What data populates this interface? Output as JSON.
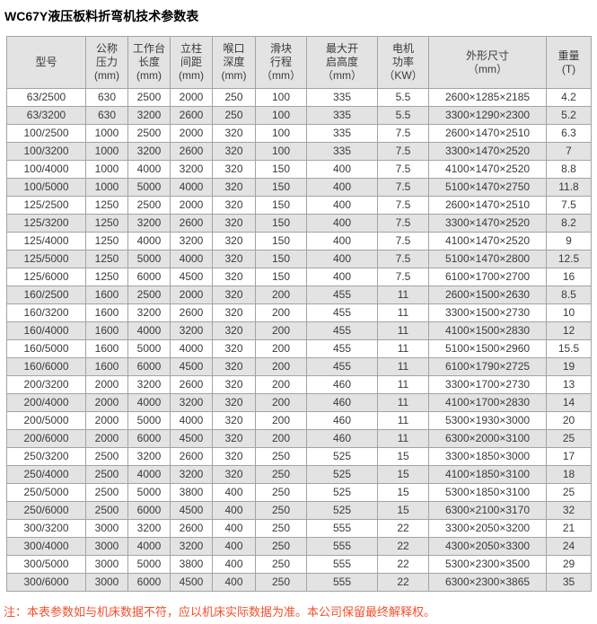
{
  "title": "WC67Y液压板料折弯机技术参数表",
  "note": "注：本表参数如与机床数据不符，应以机床实际数据为准。本公司保留最终解释权。",
  "colors": {
    "header_bg": "#e3e3e3",
    "stripe_bg": "#e3e3e3",
    "border": "#a3a3a3",
    "cell_text": "#3a3a3a",
    "note_text": "#f0502d"
  },
  "table": {
    "columns": [
      {
        "lines": [
          "型号"
        ]
      },
      {
        "lines": [
          "公称",
          "压力",
          "(mm)"
        ]
      },
      {
        "lines": [
          "工作台",
          "长度",
          "(mm)"
        ]
      },
      {
        "lines": [
          "立柱",
          "间距",
          "(mm)"
        ]
      },
      {
        "lines": [
          "喉口",
          "深度",
          "(mm)"
        ]
      },
      {
        "lines": [
          "滑块",
          "行程",
          "（mm）"
        ]
      },
      {
        "lines": [
          "最大开",
          "启高度",
          "（mm）"
        ]
      },
      {
        "lines": [
          "电机",
          "功率",
          "（KW）"
        ]
      },
      {
        "lines": [
          "外形尺寸",
          "（mm）"
        ]
      },
      {
        "lines": [
          "重量",
          "(T)"
        ]
      }
    ],
    "rows": [
      [
        "63/2500",
        "630",
        "2500",
        "2000",
        "250",
        "100",
        "335",
        "5.5",
        "2600×1285×2185",
        "4.2"
      ],
      [
        "63/3200",
        "630",
        "3200",
        "2600",
        "250",
        "100",
        "335",
        "5.5",
        "3300×1290×2300",
        "5.2"
      ],
      [
        "100/2500",
        "1000",
        "2500",
        "2000",
        "320",
        "100",
        "335",
        "7.5",
        "2600×1470×2510",
        "6.3"
      ],
      [
        "100/3200",
        "1000",
        "3200",
        "2600",
        "320",
        "100",
        "335",
        "7.5",
        "3300×1470×2520",
        "7"
      ],
      [
        "100/4000",
        "1000",
        "4000",
        "3200",
        "320",
        "150",
        "400",
        "7.5",
        "4100×1470×2520",
        "8.8"
      ],
      [
        "100/5000",
        "1000",
        "5000",
        "4000",
        "320",
        "150",
        "400",
        "7.5",
        "5100×1470×2750",
        "11.8"
      ],
      [
        "125/2500",
        "1250",
        "2500",
        "2000",
        "320",
        "150",
        "400",
        "7.5",
        "2600×1470×2510",
        "7.5"
      ],
      [
        "125/3200",
        "1250",
        "3200",
        "2600",
        "320",
        "150",
        "400",
        "7.5",
        "3300×1470×2520",
        "8.2"
      ],
      [
        "125/4000",
        "1250",
        "4000",
        "3200",
        "320",
        "150",
        "400",
        "7.5",
        "4100×1470×2520",
        "9"
      ],
      [
        "125/5000",
        "1250",
        "5000",
        "4000",
        "320",
        "150",
        "400",
        "7.5",
        "5100×1470×2800",
        "12.5"
      ],
      [
        "125/6000",
        "1250",
        "6000",
        "4500",
        "320",
        "150",
        "400",
        "7.5",
        "6100×1700×2700",
        "16"
      ],
      [
        "160/2500",
        "1600",
        "2500",
        "2000",
        "320",
        "200",
        "455",
        "11",
        "2600×1500×2630",
        "8.5"
      ],
      [
        "160/3200",
        "1600",
        "3200",
        "2600",
        "320",
        "200",
        "455",
        "11",
        "3300×1500×2730",
        "10"
      ],
      [
        "160/4000",
        "1600",
        "4000",
        "3200",
        "320",
        "200",
        "455",
        "11",
        "4100×1500×2830",
        "12"
      ],
      [
        "160/5000",
        "1600",
        "5000",
        "4000",
        "320",
        "200",
        "455",
        "11",
        "5100×1500×2960",
        "15.5"
      ],
      [
        "160/6000",
        "1600",
        "6000",
        "4500",
        "320",
        "200",
        "455",
        "11",
        "6100×1790×2725",
        "19"
      ],
      [
        "200/3200",
        "2000",
        "3200",
        "2600",
        "320",
        "200",
        "460",
        "11",
        "3300×1700×2730",
        "13"
      ],
      [
        "200/4000",
        "2000",
        "4000",
        "3200",
        "320",
        "200",
        "460",
        "11",
        "4100×1700×2830",
        "14"
      ],
      [
        "200/5000",
        "2000",
        "5000",
        "4000",
        "320",
        "200",
        "460",
        "11",
        "5300×1930×3000",
        "20"
      ],
      [
        "200/6000",
        "2000",
        "6000",
        "4500",
        "320",
        "200",
        "460",
        "11",
        "6300×2000×3100",
        "25"
      ],
      [
        "250/3200",
        "2500",
        "3200",
        "2600",
        "320",
        "250",
        "525",
        "15",
        "3300×1850×3000",
        "17"
      ],
      [
        "250/4000",
        "2500",
        "4000",
        "3200",
        "320",
        "250",
        "525",
        "15",
        "4100×1850×3100",
        "18"
      ],
      [
        "250/5000",
        "2500",
        "5000",
        "3800",
        "400",
        "250",
        "525",
        "15",
        "5300×1850×3100",
        "25"
      ],
      [
        "250/6000",
        "2500",
        "6000",
        "4500",
        "400",
        "250",
        "525",
        "15",
        "6300×2100×3170",
        "32"
      ],
      [
        "300/3200",
        "3000",
        "3200",
        "2600",
        "400",
        "250",
        "555",
        "22",
        "3300×2050×3200",
        "21"
      ],
      [
        "300/4000",
        "3000",
        "4000",
        "3200",
        "400",
        "250",
        "555",
        "22",
        "4300×2050×3300",
        "24"
      ],
      [
        "300/5000",
        "3000",
        "5000",
        "3800",
        "400",
        "250",
        "555",
        "22",
        "5300×2300×3500",
        "29"
      ],
      [
        "300/6000",
        "3000",
        "6000",
        "4500",
        "400",
        "250",
        "555",
        "22",
        "6300×2300×3865",
        "35"
      ]
    ]
  }
}
